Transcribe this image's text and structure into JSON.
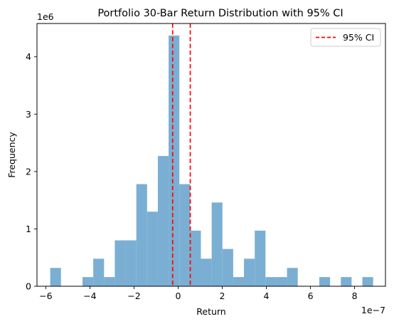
{
  "chart_data": {
    "type": "bar",
    "title": "Portfolio 30-Bar Return Distribution with 95% CI",
    "xlabel": "Return",
    "ylabel": "Frequency",
    "x_scale_label": "1e−7",
    "y_scale_label": "1e6",
    "xlim": [
      -6.4,
      9.4
    ],
    "ylim": [
      0,
      4.58
    ],
    "x_ticks": [
      -6,
      -4,
      -2,
      0,
      2,
      4,
      6,
      8
    ],
    "x_tick_labels": [
      "−6",
      "−4",
      "−2",
      "0",
      "2",
      "4",
      "6",
      "8"
    ],
    "y_ticks": [
      0,
      1,
      2,
      3,
      4
    ],
    "y_tick_labels": [
      "0",
      "1",
      "2",
      "3",
      "4"
    ],
    "bar_color": "#7aafd3",
    "bins_start": -5.8,
    "bin_width": 0.488,
    "values": [
      0.32,
      0,
      0,
      0.16,
      0.48,
      0.16,
      0.8,
      0.8,
      1.78,
      1.3,
      2.27,
      4.37,
      1.78,
      0.97,
      0.48,
      1.46,
      0.65,
      0.16,
      0.48,
      0.97,
      0.16,
      0.16,
      0.32,
      0,
      0,
      0.16,
      0,
      0.16,
      0,
      0.16
    ],
    "ci_lines": [
      -0.25,
      0.55
    ],
    "ci_color": "#ff0000",
    "legend": {
      "label": "95% CI",
      "placement": "top-right"
    },
    "grid": false
  }
}
